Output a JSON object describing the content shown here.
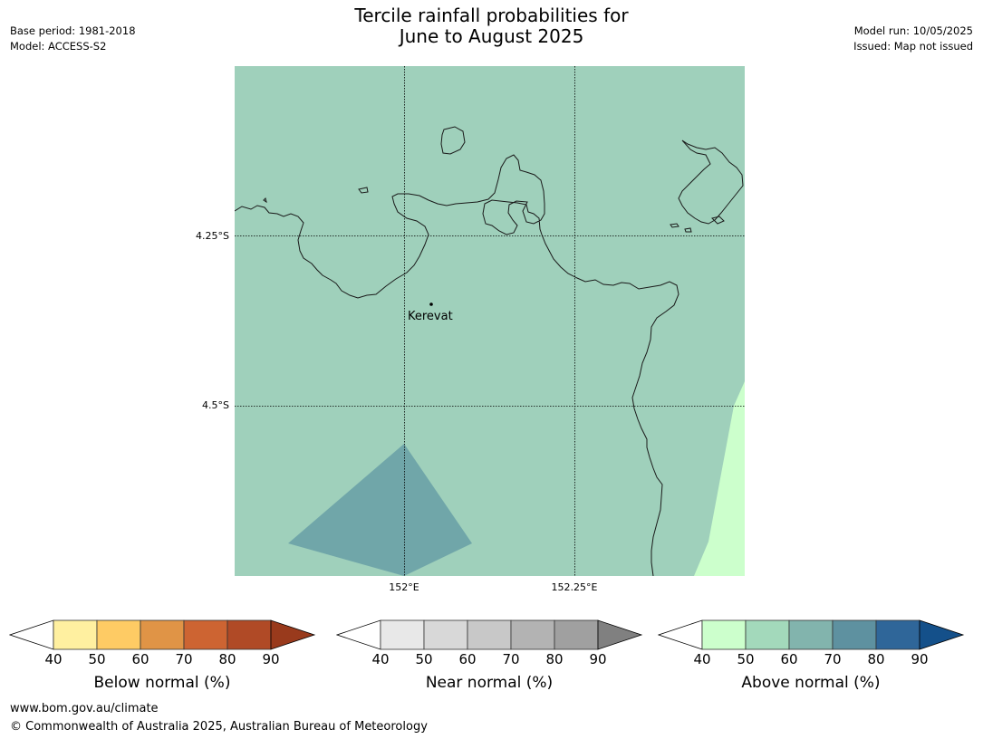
{
  "header": {
    "title_line1": "Tercile rainfall probabilities for",
    "title_line2": "June to August 2025",
    "base_period": "Base period: 1981-2018",
    "model": "Model: ACCESS-S2",
    "model_run": "Model run: 10/05/2025",
    "issued": "Issued: Map not issued"
  },
  "map": {
    "latitude_labels": [
      "4.25°S",
      "4.5°S"
    ],
    "longitude_labels": [
      "152°E",
      "152.25°E"
    ],
    "place": {
      "name": "Kerevat"
    },
    "colors": {
      "background_near_normal_50_60": "#9fd0bb",
      "above_normal_40_50": "#ccffcc",
      "near_normal_60_70": "#70a6a9",
      "coastline": "#1a1a1a",
      "gridline": "#000000"
    }
  },
  "colorbars": [
    {
      "title": "Below normal (%)",
      "ticks": [
        "40",
        "50",
        "60",
        "70",
        "80",
        "90"
      ],
      "colors": [
        "#fff0a0",
        "#fecb64",
        "#e09446",
        "#cd6432",
        "#b04a26"
      ],
      "over_color": "#993a1c"
    },
    {
      "title": "Near normal (%)",
      "ticks": [
        "40",
        "50",
        "60",
        "70",
        "80",
        "90"
      ],
      "colors": [
        "#e8e8e8",
        "#d8d8d8",
        "#c8c8c8",
        "#b3b3b3",
        "#a0a0a0"
      ],
      "over_color": "#808080"
    },
    {
      "title": "Above normal (%)",
      "ticks": [
        "40",
        "50",
        "60",
        "70",
        "80",
        "90"
      ],
      "colors": [
        "#ccffcc",
        "#a3d9bb",
        "#82b4ad",
        "#5e91a0",
        "#2f6699"
      ],
      "over_color": "#14508a"
    }
  ],
  "footer": {
    "url": "www.bom.gov.au/climate",
    "copyright": "© Commonwealth of Australia 2025, Australian Bureau of Meteorology"
  }
}
